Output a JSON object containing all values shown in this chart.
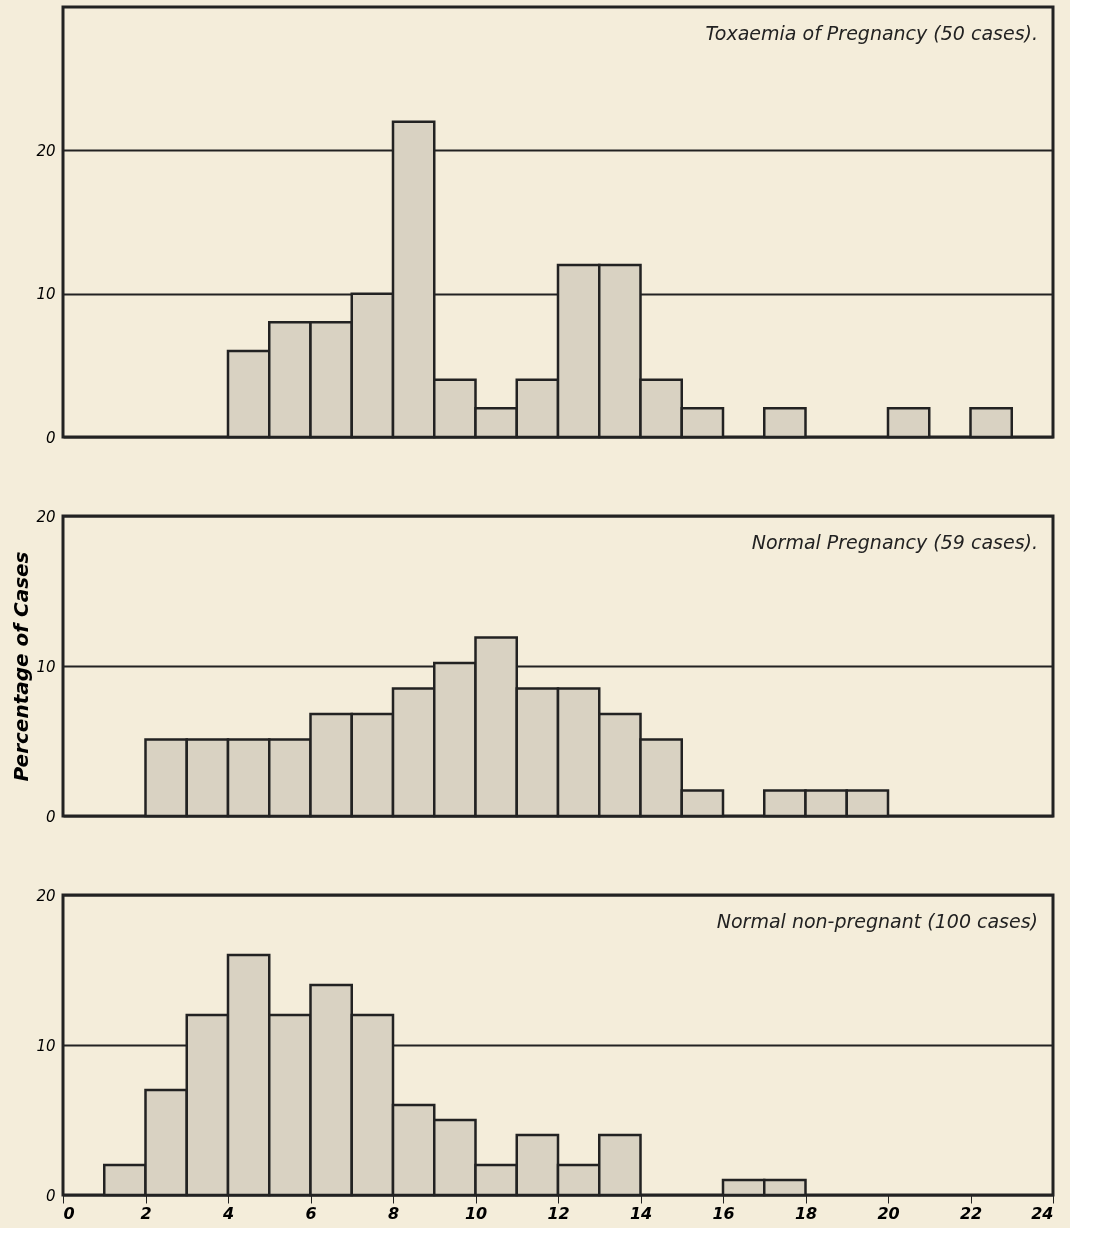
{
  "chart_data": [
    {
      "type": "histogram",
      "title": "Toxaemia of Pregnancy (50 cases).",
      "bins": [
        4,
        5,
        6,
        7,
        8,
        9,
        10,
        11,
        12,
        13,
        14,
        15,
        16,
        17,
        18,
        19,
        20,
        21,
        22,
        23
      ],
      "values": [
        6,
        8,
        8,
        10,
        22,
        4,
        2,
        4,
        12,
        12,
        4,
        2,
        0,
        2,
        0,
        0,
        2,
        0,
        2
      ],
      "color": "#d9d2c2",
      "xlim": [
        0,
        24
      ],
      "ylim": [
        0,
        30
      ],
      "yticks": [
        0,
        10,
        20
      ],
      "grid": "y",
      "tick_labels": "y"
    },
    {
      "type": "histogram",
      "title": "Normal Pregnancy (59 cases).",
      "ylabel": "Percentage of Cases",
      "bins": [
        2,
        3,
        4,
        5,
        6,
        7,
        8,
        9,
        10,
        11,
        12,
        13,
        14,
        15,
        16,
        17,
        18,
        19,
        20
      ],
      "values": [
        5.1,
        5.1,
        5.1,
        5.1,
        6.8,
        6.8,
        8.5,
        10.2,
        11.9,
        8.5,
        8.5,
        6.8,
        5.1,
        1.7,
        0,
        1.7,
        1.7,
        1.7
      ],
      "color": "#d9d2c2",
      "xlim": [
        0,
        24
      ],
      "ylim": [
        0,
        20
      ],
      "yticks": [
        0,
        10,
        20
      ],
      "grid": "y",
      "tick_labels": "y"
    },
    {
      "type": "histogram",
      "title": "Normal non-pregnant (100 cases)",
      "bins": [
        1,
        2,
        3,
        4,
        5,
        6,
        7,
        8,
        9,
        10,
        11,
        12,
        13,
        14,
        15,
        16,
        17,
        18
      ],
      "values": [
        2,
        7,
        12,
        16,
        12,
        14,
        12,
        6,
        5,
        2,
        4,
        2,
        4,
        0,
        0,
        1,
        1
      ],
      "color": "#d9d2c2",
      "xlim": [
        0,
        24
      ],
      "xticks": [
        0,
        2,
        4,
        6,
        8,
        10,
        12,
        14,
        16,
        18,
        20,
        22,
        24
      ],
      "ylim": [
        0,
        20
      ],
      "yticks": [
        0,
        10,
        20
      ],
      "grid": "y"
    }
  ]
}
